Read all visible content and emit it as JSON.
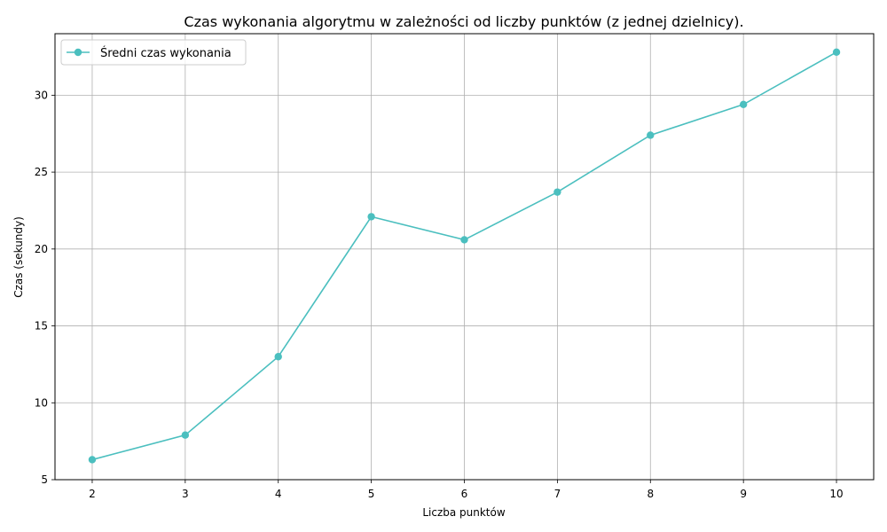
{
  "chart_data": {
    "type": "line",
    "title": "Czas wykonania algorytmu w zależności od liczby punktów (z jednej dzielnicy).",
    "xlabel": "Liczba punktów",
    "ylabel": "Czas (sekundy)",
    "x": [
      2,
      3,
      4,
      5,
      6,
      7,
      8,
      9,
      10
    ],
    "xlim": [
      1.6,
      10.4
    ],
    "ylim": [
      5,
      34
    ],
    "xticks": [
      2,
      3,
      4,
      5,
      6,
      7,
      8,
      9,
      10
    ],
    "yticks": [
      5,
      10,
      15,
      20,
      25,
      30
    ],
    "grid": true,
    "legend_position": "top-left",
    "series": [
      {
        "name": "Średni czas wykonania",
        "values": [
          6.3,
          7.9,
          13.0,
          22.1,
          20.6,
          23.7,
          27.4,
          29.4,
          32.8
        ],
        "color": "#4bbfbf",
        "marker": "circle"
      }
    ]
  }
}
